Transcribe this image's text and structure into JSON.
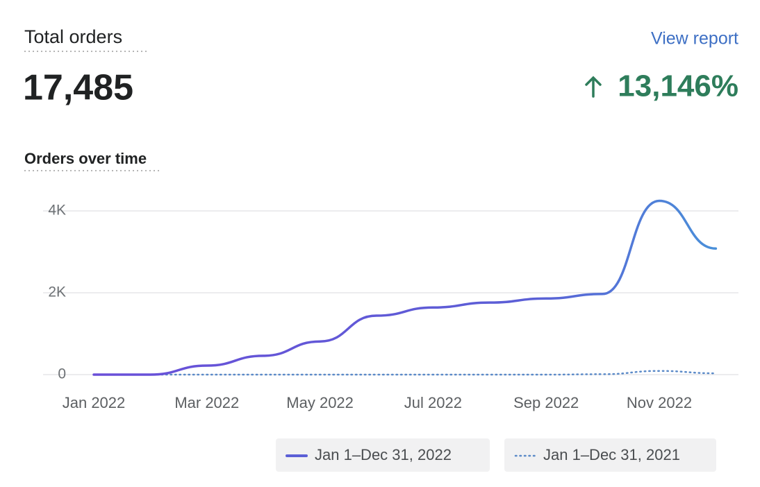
{
  "header": {
    "title": "Total orders",
    "value": "17,485",
    "link": "View report",
    "change": "13,146%"
  },
  "chart_data": {
    "type": "line",
    "title": "Orders over time",
    "categories": [
      "Jan 2022",
      null,
      "Mar 2022",
      null,
      "May 2022",
      null,
      "Jul 2022",
      null,
      "Sep 2022",
      null,
      "Nov 2022",
      null
    ],
    "series": [
      {
        "name": "Jan 1–Dec 31, 2022",
        "color": "#5b5fd6",
        "style": "solid",
        "values": [
          0,
          0,
          220,
          460,
          810,
          1440,
          1640,
          1760,
          1860,
          1970,
          4245,
          3080
        ]
      },
      {
        "name": "Jan 1–Dec 31, 2021",
        "color": "#5b8ac8",
        "style": "dotted",
        "values": [
          0,
          0,
          0,
          0,
          0,
          0,
          0,
          0,
          0,
          10,
          90,
          32
        ]
      }
    ],
    "ylim": [
      0,
      4300
    ],
    "yticks": [
      0,
      {
        "value": 2000,
        "label": "2K"
      },
      {
        "value": 4000,
        "label": "4K"
      }
    ],
    "grid": true
  }
}
